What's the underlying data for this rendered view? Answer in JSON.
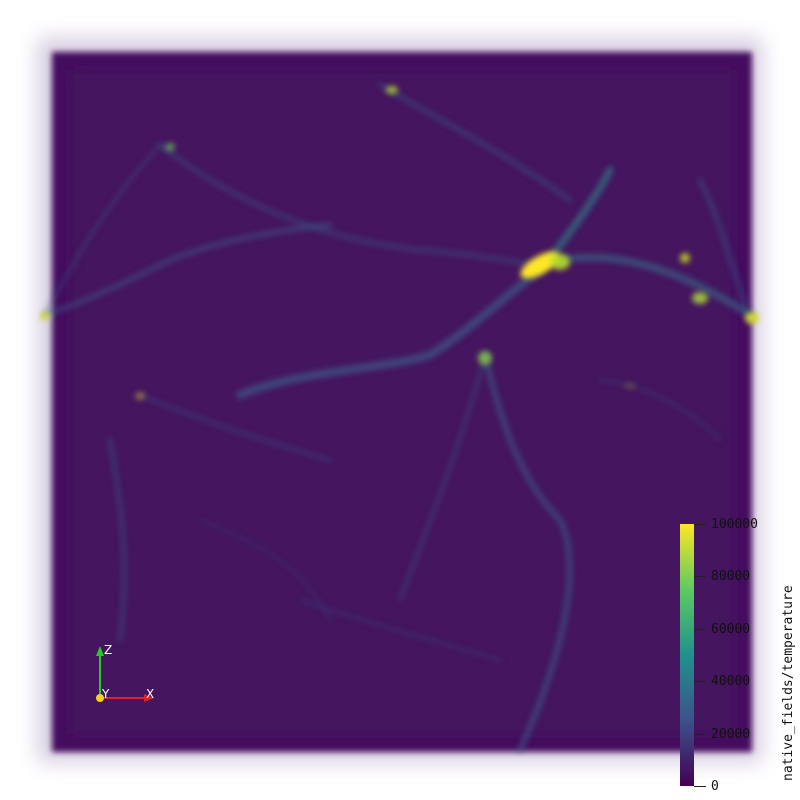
{
  "colormap": {
    "name": "viridis",
    "stops": [
      "#440154",
      "#3b528b",
      "#21918c",
      "#5ec962",
      "#fde725"
    ]
  },
  "scalar_bar": {
    "title": "native_fields/temperature",
    "min": 0,
    "max": 100000,
    "ticks": [
      {
        "value": 100000,
        "label": "100000"
      },
      {
        "value": 80000,
        "label": "80000"
      },
      {
        "value": 60000,
        "label": "60000"
      },
      {
        "value": 40000,
        "label": "40000"
      },
      {
        "value": 20000,
        "label": "20000"
      },
      {
        "value": 0,
        "label": "0"
      }
    ]
  },
  "orientation_axes": {
    "z_label": "Z",
    "y_label": "Y",
    "x_label": "X",
    "z_color": "#22cc22",
    "y_color": "#f2d21a",
    "x_color": "#dd2222"
  },
  "volume": {
    "background_color": "#450a5e",
    "edge_color": "#ffffff"
  }
}
